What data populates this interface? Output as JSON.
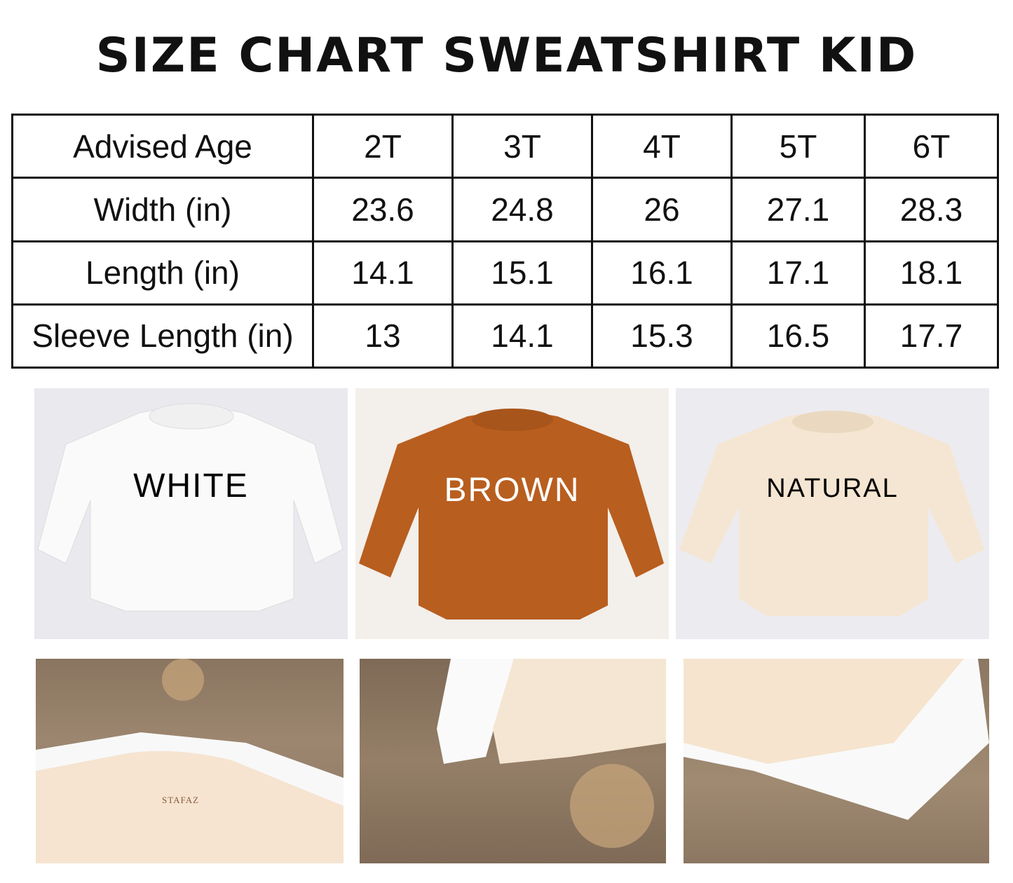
{
  "title": "SIZE CHART SWEATSHIRT KID",
  "size_table": {
    "header": {
      "label": "Advised Age",
      "sizes": [
        "2T",
        "3T",
        "4T",
        "5T",
        "6T"
      ]
    },
    "rows": [
      {
        "label": "Width (in)",
        "values": [
          "23.6",
          "24.8",
          "26",
          "27.1",
          "28.3"
        ]
      },
      {
        "label": "Length (in)",
        "values": [
          "14.1",
          "15.1",
          "16.1",
          "17.1",
          "18.1"
        ]
      },
      {
        "label": "Sleeve Length (in)",
        "values": [
          "13",
          "14.1",
          "15.3",
          "16.5",
          "17.7"
        ]
      }
    ]
  },
  "colors": [
    {
      "label": "WHITE",
      "swatch": "#f7f7f8",
      "text_color": "#111111"
    },
    {
      "label": "BROWN",
      "swatch": "#b85e1f",
      "text_color": "#ffffff"
    },
    {
      "label": "NATURAL",
      "swatch": "#f4e6d2",
      "text_color": "#111111"
    }
  ],
  "brand_label": "STAFAZ"
}
